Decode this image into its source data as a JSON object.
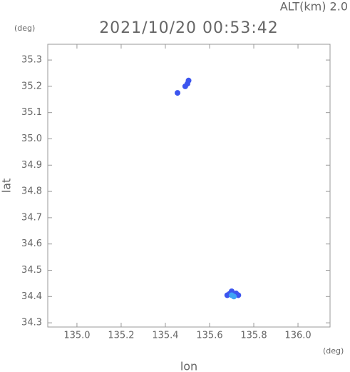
{
  "chart_data": {
    "type": "scatter",
    "title": "2021/10/20 00:53:42",
    "annotation": "ALT(km) 2.0",
    "x_label": "lon",
    "x_unit": "(deg)",
    "y_label": "lat",
    "y_unit": "(deg)",
    "xlim": [
      134.868,
      136.145
    ],
    "ylim": [
      34.284,
      35.36
    ],
    "xticks": [
      {
        "value": 135,
        "label": "135.0"
      },
      {
        "value": 135.2,
        "label": "135.2"
      },
      {
        "value": 135.4,
        "label": "135.4"
      },
      {
        "value": 135.6,
        "label": "135.6"
      },
      {
        "value": 135.8,
        "label": "135.8"
      },
      {
        "value": 136,
        "label": "136.0"
      }
    ],
    "yticks": [
      34.3,
      34.4,
      34.5,
      34.6,
      34.7,
      34.8,
      34.9,
      {
        "value": 35,
        "label": "35.0"
      },
      35.1,
      35.2,
      35.3
    ],
    "series": [
      {
        "color": "#3c55ef",
        "x": [
          135.49,
          135.5,
          135.505,
          135.455,
          135.68,
          135.69,
          135.72,
          135.73,
          135.7
        ],
        "y": [
          35.2,
          35.21,
          35.222,
          35.175,
          34.405,
          34.41,
          34.412,
          34.405,
          34.42
        ]
      },
      {
        "color": "#3fa4f5",
        "x": [
          135.7,
          135.71
        ],
        "y": [
          34.405,
          34.4
        ]
      }
    ]
  }
}
